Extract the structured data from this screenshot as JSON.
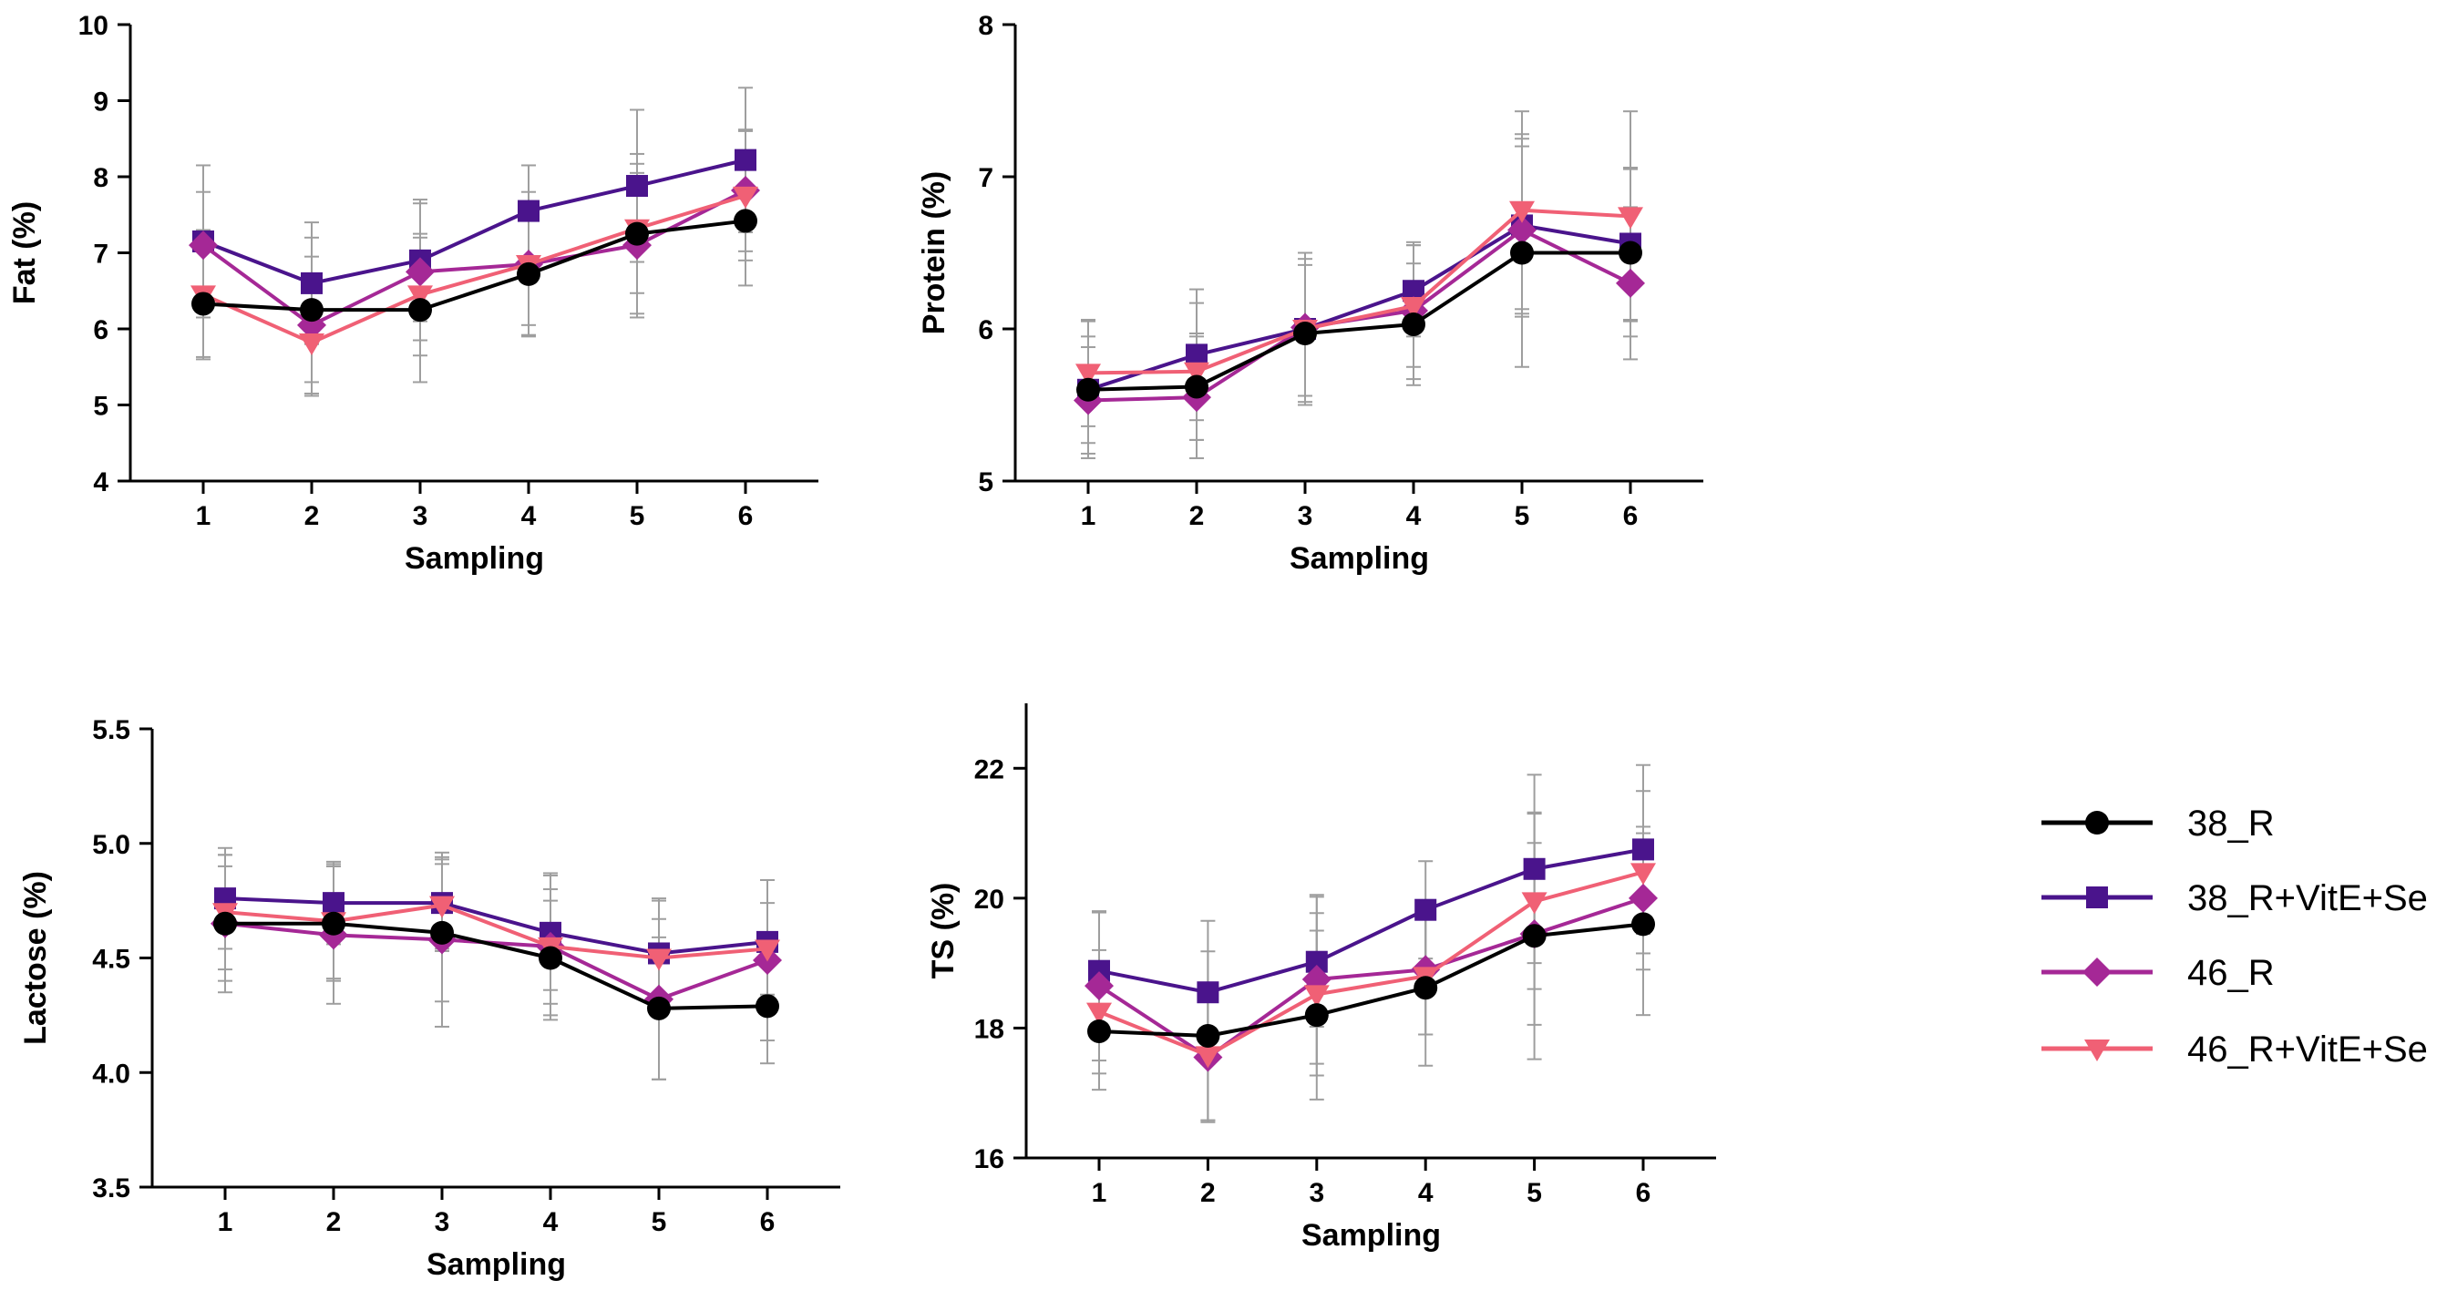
{
  "chart_data": [
    {
      "id": "fat",
      "type": "line",
      "title": "",
      "xlabel": "Sampling",
      "ylabel": "Fat (%)",
      "categories": [
        "1",
        "2",
        "3",
        "4",
        "5",
        "6"
      ],
      "ylim": [
        4,
        10
      ],
      "yticks": [
        4,
        5,
        6,
        7,
        8,
        9,
        10
      ],
      "grid": false,
      "error_bars": true,
      "series": [
        {
          "name": "38_R",
          "values": [
            6.33,
            6.25,
            6.25,
            6.72,
            7.25,
            7.42
          ],
          "err": [
            0.7,
            0.95,
            0.95,
            0.8,
            1.05,
            0.85
          ]
        },
        {
          "name": "38_R+VitE+Se",
          "values": [
            7.15,
            6.6,
            6.9,
            7.55,
            7.88,
            8.22
          ],
          "err": [
            1.0,
            0.8,
            0.8,
            0.6,
            1.0,
            0.95
          ]
        },
        {
          "name": "46_R",
          "values": [
            7.1,
            6.05,
            6.75,
            6.85,
            7.1,
            7.82
          ],
          "err": [
            0.7,
            0.9,
            0.9,
            0.95,
            0.95,
            0.8
          ]
        },
        {
          "name": "46_R+VitE+Se",
          "values": [
            6.45,
            5.82,
            6.45,
            6.85,
            7.32,
            7.75
          ],
          "err": [
            0.85,
            0.7,
            0.8,
            0.8,
            0.85,
            0.85
          ]
        }
      ]
    },
    {
      "id": "protein",
      "type": "line",
      "title": "",
      "xlabel": "Sampling",
      "ylabel": "Protein (%)",
      "categories": [
        "1",
        "2",
        "3",
        "4",
        "5",
        "6"
      ],
      "ylim": [
        5,
        8
      ],
      "yticks": [
        5,
        6,
        7,
        8
      ],
      "grid": false,
      "error_bars": true,
      "series": [
        {
          "name": "38_R",
          "values": [
            5.6,
            5.62,
            5.97,
            6.03,
            6.5,
            6.5
          ],
          "err": [
            0.35,
            0.35,
            0.45,
            0.4,
            0.75,
            0.55
          ]
        },
        {
          "name": "38_R+VitE+Se",
          "values": [
            5.6,
            5.83,
            6.0,
            6.25,
            6.68,
            6.56
          ],
          "err": [
            0.45,
            0.43,
            0.5,
            0.3,
            0.6,
            0.5
          ]
        },
        {
          "name": "46_R",
          "values": [
            5.53,
            5.55,
            6.01,
            6.12,
            6.65,
            6.3
          ],
          "err": [
            0.35,
            0.4,
            0.45,
            0.45,
            0.55,
            0.5
          ]
        },
        {
          "name": "46_R+VitE+Se",
          "values": [
            5.71,
            5.72,
            6.0,
            6.15,
            6.78,
            6.74
          ],
          "err": [
            0.35,
            0.45,
            0.5,
            0.4,
            0.65,
            0.69
          ]
        }
      ]
    },
    {
      "id": "lactose",
      "type": "line",
      "title": "",
      "xlabel": "Sampling",
      "ylabel": "Lactose (%)",
      "categories": [
        "1",
        "2",
        "3",
        "4",
        "5",
        "6"
      ],
      "ylim": [
        3.5,
        5.5
      ],
      "yticks": [
        3.5,
        4.0,
        4.5,
        5.0,
        5.5
      ],
      "grid": false,
      "error_bars": true,
      "series": [
        {
          "name": "38_R",
          "values": [
            4.65,
            4.65,
            4.61,
            4.5,
            4.28,
            4.29
          ],
          "err": [
            0.25,
            0.25,
            0.3,
            0.25,
            0.31,
            0.25
          ]
        },
        {
          "name": "38_R+VitE+Se",
          "values": [
            4.76,
            4.74,
            4.74,
            4.61,
            4.52,
            4.57
          ],
          "err": [
            0.22,
            0.18,
            0.2,
            0.25,
            0.24,
            0.27
          ]
        },
        {
          "name": "46_R",
          "values": [
            4.65,
            4.6,
            4.58,
            4.55,
            4.32,
            4.49
          ],
          "err": [
            0.3,
            0.3,
            0.38,
            0.32,
            0.35,
            0.35
          ]
        },
        {
          "name": "46_R+VitE+Se",
          "values": [
            4.7,
            4.66,
            4.73,
            4.55,
            4.5,
            4.54
          ],
          "err": [
            0.25,
            0.25,
            0.2,
            0.25,
            0.25,
            0.2
          ]
        }
      ]
    },
    {
      "id": "ts",
      "type": "line",
      "title": "",
      "xlabel": "Sampling",
      "ylabel": "TS (%)",
      "categories": [
        "1",
        "2",
        "3",
        "4",
        "5",
        "6"
      ],
      "ylim": [
        16,
        23
      ],
      "yticks": [
        16,
        18,
        20,
        22
      ],
      "grid": false,
      "error_bars": true,
      "series": [
        {
          "name": "38_R",
          "values": [
            17.95,
            17.88,
            18.2,
            18.62,
            19.42,
            19.6
          ],
          "err": [
            0.9,
            1.3,
            1.3,
            1.2,
            1.9,
            1.4
          ]
        },
        {
          "name": "38_R+VitE+Se",
          "values": [
            18.88,
            18.55,
            19.02,
            19.82,
            20.45,
            20.75
          ],
          "err": [
            0.9,
            1.1,
            1.0,
            0.75,
            1.45,
            1.3
          ]
        },
        {
          "name": "46_R",
          "values": [
            18.65,
            17.55,
            18.75,
            18.9,
            19.45,
            20.0
          ],
          "err": [
            1.15,
            1.0,
            1.3,
            1.0,
            1.4,
            1.1
          ]
        },
        {
          "name": "46_R+VitE+Se",
          "values": [
            18.25,
            17.58,
            18.52,
            18.8,
            19.95,
            20.4
          ],
          "err": [
            0.95,
            1.0,
            1.25,
            0.9,
            1.35,
            1.25
          ]
        }
      ]
    }
  ],
  "legend": {
    "placement": "right",
    "items": [
      {
        "name": "38_R",
        "color": "#000000",
        "marker": "circle"
      },
      {
        "name": "38_R+VitE+Se",
        "color": "#4a148c",
        "marker": "square"
      },
      {
        "name": "46_R",
        "color": "#a52896",
        "marker": "diamond"
      },
      {
        "name": "46_R+VitE+Se",
        "color": "#f06075",
        "marker": "triangle-down"
      }
    ]
  },
  "colors": {
    "error_bar": "#9e9e9e",
    "axis": "#000000"
  }
}
